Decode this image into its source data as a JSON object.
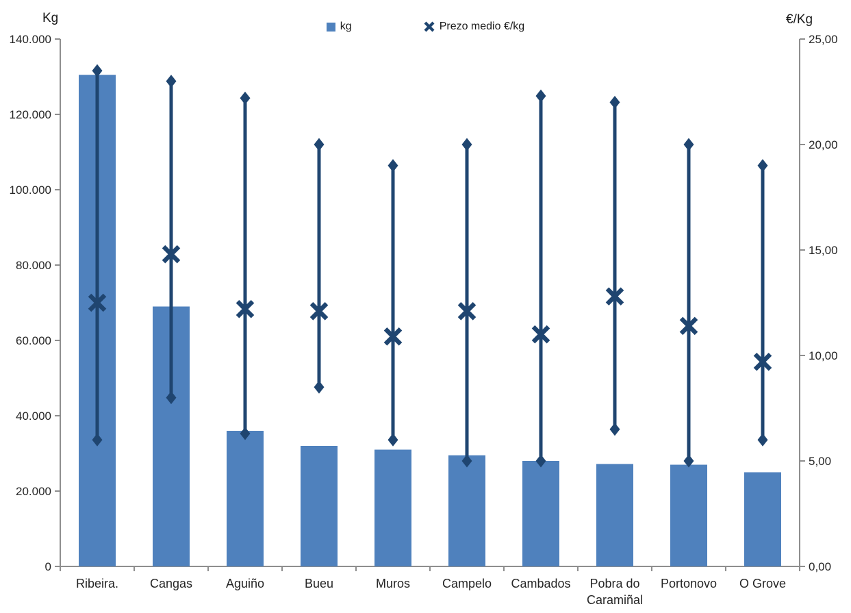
{
  "chart_data": {
    "type": "bar",
    "subtype": "combo-bar-with-xmarker-range",
    "categories": [
      "Ribeira.",
      "Cangas",
      "Aguiño",
      "Bueu",
      "Muros",
      "Campelo",
      "Cambados",
      "Pobra do Caramiñal",
      "Portonovo",
      "O Grove"
    ],
    "categories_display": [
      [
        "Ribeira."
      ],
      [
        "Cangas"
      ],
      [
        "Aguiño"
      ],
      [
        "Bueu"
      ],
      [
        "Muros"
      ],
      [
        "Campelo"
      ],
      [
        "Cambados"
      ],
      [
        "Pobra do",
        "Caramiñal"
      ],
      [
        "Portonovo"
      ],
      [
        "O Grove"
      ]
    ],
    "series": [
      {
        "name": "kg",
        "type": "bar",
        "axis": "left",
        "values": [
          130500,
          69000,
          36000,
          32000,
          31000,
          29500,
          28000,
          27200,
          27000,
          25000
        ]
      },
      {
        "name": "Prezo medio €/kg",
        "type": "x-marker",
        "axis": "right",
        "values": [
          12.5,
          14.8,
          12.2,
          12.1,
          10.9,
          12.1,
          11.0,
          12.8,
          11.4,
          9.7
        ],
        "range_max": [
          23.5,
          23.0,
          22.2,
          20.0,
          19.0,
          20.0,
          22.3,
          22.0,
          20.0,
          19.0
        ],
        "range_min": [
          6.0,
          8.0,
          6.3,
          8.5,
          6.0,
          5.0,
          5.0,
          6.5,
          5.0,
          6.0
        ]
      }
    ],
    "left_axis": {
      "title": "Kg",
      "min": 0,
      "max": 140000,
      "step": 20000,
      "tick_labels": [
        "140.000",
        "120.000",
        "100.000",
        "80.000",
        "60.000",
        "40.000",
        "20.000",
        "0"
      ]
    },
    "right_axis": {
      "title": "€/Kg",
      "min": 0,
      "max": 25,
      "step": 5,
      "tick_labels": [
        "25,00",
        "20,00",
        "15,00",
        "10,00",
        "5,00",
        "0,00"
      ]
    },
    "legend": [
      {
        "label": "kg",
        "marker": "square"
      },
      {
        "label": "Prezo medio €/kg",
        "marker": "x"
      }
    ],
    "legend_position": "top-center",
    "grid": false,
    "colors": {
      "bar": "#4F81BD",
      "marker_line": "#1F4570",
      "axis_line": "#8E8E8E",
      "text": "#262626"
    }
  }
}
